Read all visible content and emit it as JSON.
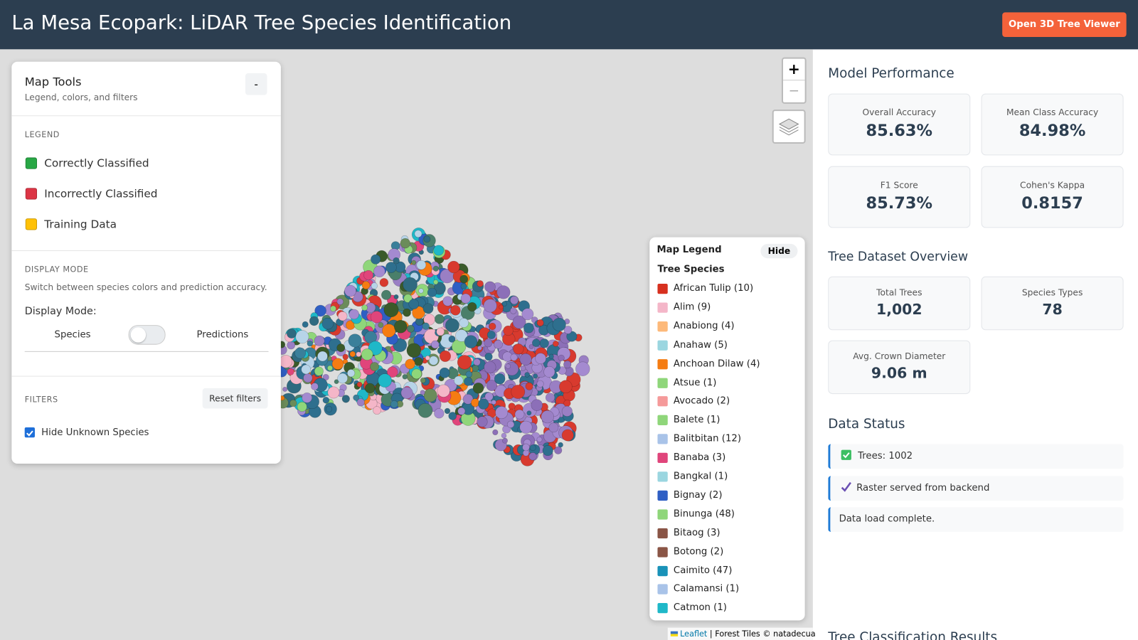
{
  "header": {
    "title": "La Mesa Ecopark: LiDAR Tree Species Identification",
    "button": "Open 3D Tree Viewer"
  },
  "map_tools": {
    "title": "Map Tools",
    "subtitle": "Legend, colors, and filters",
    "collapse": "-",
    "legend_heading": "LEGEND",
    "legend": [
      {
        "label": "Correctly Classified",
        "color": "#28a745"
      },
      {
        "label": "Incorrectly Classified",
        "color": "#dc3545"
      },
      {
        "label": "Training Data",
        "color": "#ffc107"
      }
    ],
    "display_heading": "DISPLAY MODE",
    "display_help": "Switch between species colors and prediction accuracy.",
    "display_label": "Display Mode:",
    "toggle_left": "Species",
    "toggle_right": "Predictions",
    "filters_heading": "FILTERS",
    "reset": "Reset filters",
    "filter_checkbox": "Hide Unknown Species"
  },
  "zoom": {
    "in": "+",
    "out": "−"
  },
  "map_legend": {
    "title": "Map Legend",
    "hide": "Hide",
    "subtitle": "Tree Species",
    "species": [
      {
        "label": "African Tulip (10)",
        "color": "#d7301f"
      },
      {
        "label": "Alim (9)",
        "color": "#f4b6c8"
      },
      {
        "label": "Anabiong (4)",
        "color": "#fdb97a"
      },
      {
        "label": "Anahaw (5)",
        "color": "#9bd6e0"
      },
      {
        "label": "Anchoan Dilaw (4)",
        "color": "#f57c12"
      },
      {
        "label": "Atsue (1)",
        "color": "#8fd67a"
      },
      {
        "label": "Avocado (2)",
        "color": "#f59a9a"
      },
      {
        "label": "Balete (1)",
        "color": "#8fd67a"
      },
      {
        "label": "Balitbitan (12)",
        "color": "#a9c3e8"
      },
      {
        "label": "Banaba (3)",
        "color": "#e0457b"
      },
      {
        "label": "Bangkal (1)",
        "color": "#9bd6e0"
      },
      {
        "label": "Bignay (2)",
        "color": "#2f5fc4"
      },
      {
        "label": "Binunga (48)",
        "color": "#8fd67a"
      },
      {
        "label": "Bitaog (3)",
        "color": "#8a5546"
      },
      {
        "label": "Botong (2)",
        "color": "#8a5546"
      },
      {
        "label": "Caimito (47)",
        "color": "#1992b8"
      },
      {
        "label": "Calamansi (1)",
        "color": "#a9c3e8"
      },
      {
        "label": "Catmon (1)",
        "color": "#1fb8c8"
      }
    ]
  },
  "attribution": {
    "link": "Leaflet",
    "separator": "|",
    "text": "Forest Tiles © natadecua"
  },
  "sidebar": {
    "performance_title": "Model Performance",
    "performance": [
      {
        "label": "Overall Accuracy",
        "value": "85.63%"
      },
      {
        "label": "Mean Class Accuracy",
        "value": "84.98%"
      },
      {
        "label": "F1 Score",
        "value": "85.73%"
      },
      {
        "label": "Cohen's Kappa",
        "value": "0.8157"
      }
    ],
    "dataset_title": "Tree Dataset Overview",
    "dataset": [
      {
        "label": "Total Trees",
        "value": "1,002"
      },
      {
        "label": "Species Types",
        "value": "78"
      },
      {
        "label": "Avg. Crown Diameter",
        "value": "9.06 m"
      }
    ],
    "status_title": "Data Status",
    "status": [
      "Trees: 1002",
      "Raster served from backend",
      "Data load complete."
    ],
    "results_title": "Tree Classification Results"
  }
}
